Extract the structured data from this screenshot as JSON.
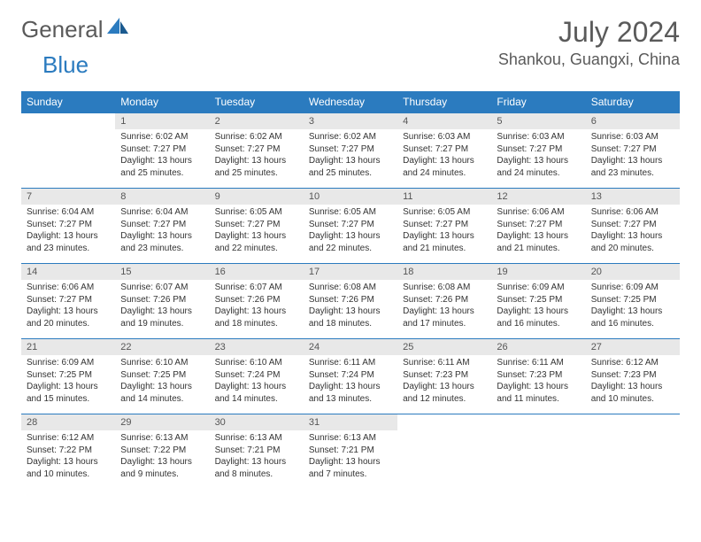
{
  "brand": {
    "part1": "General",
    "part2": "Blue"
  },
  "title": "July 2024",
  "location": "Shankou, Guangxi, China",
  "colors": {
    "header_bg": "#2b7bbf",
    "header_fg": "#ffffff",
    "daynum_bg": "#e8e8e8",
    "rule": "#2b7bbf",
    "text": "#333333",
    "title_fg": "#5a5a5a"
  },
  "day_names": [
    "Sunday",
    "Monday",
    "Tuesday",
    "Wednesday",
    "Thursday",
    "Friday",
    "Saturday"
  ],
  "weeks": [
    [
      null,
      {
        "n": "1",
        "sr": "6:02 AM",
        "ss": "7:27 PM",
        "dl": "13 hours and 25 minutes."
      },
      {
        "n": "2",
        "sr": "6:02 AM",
        "ss": "7:27 PM",
        "dl": "13 hours and 25 minutes."
      },
      {
        "n": "3",
        "sr": "6:02 AM",
        "ss": "7:27 PM",
        "dl": "13 hours and 25 minutes."
      },
      {
        "n": "4",
        "sr": "6:03 AM",
        "ss": "7:27 PM",
        "dl": "13 hours and 24 minutes."
      },
      {
        "n": "5",
        "sr": "6:03 AM",
        "ss": "7:27 PM",
        "dl": "13 hours and 24 minutes."
      },
      {
        "n": "6",
        "sr": "6:03 AM",
        "ss": "7:27 PM",
        "dl": "13 hours and 23 minutes."
      }
    ],
    [
      {
        "n": "7",
        "sr": "6:04 AM",
        "ss": "7:27 PM",
        "dl": "13 hours and 23 minutes."
      },
      {
        "n": "8",
        "sr": "6:04 AM",
        "ss": "7:27 PM",
        "dl": "13 hours and 23 minutes."
      },
      {
        "n": "9",
        "sr": "6:05 AM",
        "ss": "7:27 PM",
        "dl": "13 hours and 22 minutes."
      },
      {
        "n": "10",
        "sr": "6:05 AM",
        "ss": "7:27 PM",
        "dl": "13 hours and 22 minutes."
      },
      {
        "n": "11",
        "sr": "6:05 AM",
        "ss": "7:27 PM",
        "dl": "13 hours and 21 minutes."
      },
      {
        "n": "12",
        "sr": "6:06 AM",
        "ss": "7:27 PM",
        "dl": "13 hours and 21 minutes."
      },
      {
        "n": "13",
        "sr": "6:06 AM",
        "ss": "7:27 PM",
        "dl": "13 hours and 20 minutes."
      }
    ],
    [
      {
        "n": "14",
        "sr": "6:06 AM",
        "ss": "7:27 PM",
        "dl": "13 hours and 20 minutes."
      },
      {
        "n": "15",
        "sr": "6:07 AM",
        "ss": "7:26 PM",
        "dl": "13 hours and 19 minutes."
      },
      {
        "n": "16",
        "sr": "6:07 AM",
        "ss": "7:26 PM",
        "dl": "13 hours and 18 minutes."
      },
      {
        "n": "17",
        "sr": "6:08 AM",
        "ss": "7:26 PM",
        "dl": "13 hours and 18 minutes."
      },
      {
        "n": "18",
        "sr": "6:08 AM",
        "ss": "7:26 PM",
        "dl": "13 hours and 17 minutes."
      },
      {
        "n": "19",
        "sr": "6:09 AM",
        "ss": "7:25 PM",
        "dl": "13 hours and 16 minutes."
      },
      {
        "n": "20",
        "sr": "6:09 AM",
        "ss": "7:25 PM",
        "dl": "13 hours and 16 minutes."
      }
    ],
    [
      {
        "n": "21",
        "sr": "6:09 AM",
        "ss": "7:25 PM",
        "dl": "13 hours and 15 minutes."
      },
      {
        "n": "22",
        "sr": "6:10 AM",
        "ss": "7:25 PM",
        "dl": "13 hours and 14 minutes."
      },
      {
        "n": "23",
        "sr": "6:10 AM",
        "ss": "7:24 PM",
        "dl": "13 hours and 14 minutes."
      },
      {
        "n": "24",
        "sr": "6:11 AM",
        "ss": "7:24 PM",
        "dl": "13 hours and 13 minutes."
      },
      {
        "n": "25",
        "sr": "6:11 AM",
        "ss": "7:23 PM",
        "dl": "13 hours and 12 minutes."
      },
      {
        "n": "26",
        "sr": "6:11 AM",
        "ss": "7:23 PM",
        "dl": "13 hours and 11 minutes."
      },
      {
        "n": "27",
        "sr": "6:12 AM",
        "ss": "7:23 PM",
        "dl": "13 hours and 10 minutes."
      }
    ],
    [
      {
        "n": "28",
        "sr": "6:12 AM",
        "ss": "7:22 PM",
        "dl": "13 hours and 10 minutes."
      },
      {
        "n": "29",
        "sr": "6:13 AM",
        "ss": "7:22 PM",
        "dl": "13 hours and 9 minutes."
      },
      {
        "n": "30",
        "sr": "6:13 AM",
        "ss": "7:21 PM",
        "dl": "13 hours and 8 minutes."
      },
      {
        "n": "31",
        "sr": "6:13 AM",
        "ss": "7:21 PM",
        "dl": "13 hours and 7 minutes."
      },
      null,
      null,
      null
    ]
  ],
  "labels": {
    "sunrise": "Sunrise:",
    "sunset": "Sunset:",
    "daylight": "Daylight:"
  }
}
